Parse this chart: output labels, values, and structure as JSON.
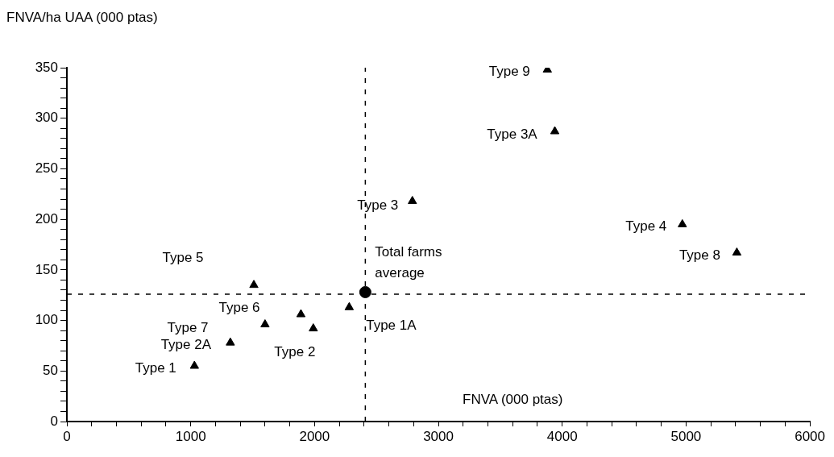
{
  "chart_data": {
    "type": "scatter",
    "xlabel": "FNVA (000 ptas)",
    "ylabel": "FNVA/ha UAA (000 ptas)",
    "xlim": [
      0,
      6000
    ],
    "ylim": [
      0,
      350
    ],
    "xticks": [
      0,
      {
        "value": 200,
        "label": null
      },
      {
        "value": 400,
        "label": null
      },
      {
        "value": 600,
        "label": null
      },
      {
        "value": 800,
        "label": null
      },
      1000,
      {
        "value": 1200,
        "label": null
      },
      {
        "value": 1400,
        "label": null
      },
      {
        "value": 1600,
        "label": null
      },
      {
        "value": 1800,
        "label": null
      },
      2000,
      {
        "value": 2200,
        "label": null
      },
      {
        "value": 2400,
        "label": null
      },
      {
        "value": 2600,
        "label": null
      },
      {
        "value": 2800,
        "label": null
      },
      3000,
      {
        "value": 3200,
        "label": null
      },
      {
        "value": 3400,
        "label": null
      },
      {
        "value": 3600,
        "label": null
      },
      {
        "value": 3800,
        "label": null
      },
      4000,
      {
        "value": 4200,
        "label": null
      },
      {
        "value": 4400,
        "label": null
      },
      {
        "value": 4600,
        "label": null
      },
      {
        "value": 4800,
        "label": null
      },
      5000,
      {
        "value": 5200,
        "label": null
      },
      {
        "value": 5400,
        "label": null
      },
      {
        "value": 5600,
        "label": null
      },
      {
        "value": 5800,
        "label": null
      },
      6000
    ],
    "yticks": [
      0,
      {
        "value": 10,
        "label": null
      },
      {
        "value": 20,
        "label": null
      },
      {
        "value": 30,
        "label": null
      },
      {
        "value": 40,
        "label": null
      },
      50,
      {
        "value": 60,
        "label": null
      },
      {
        "value": 70,
        "label": null
      },
      {
        "value": 80,
        "label": null
      },
      {
        "value": 90,
        "label": null
      },
      100,
      {
        "value": 110,
        "label": null
      },
      {
        "value": 120,
        "label": null
      },
      {
        "value": 130,
        "label": null
      },
      {
        "value": 140,
        "label": null
      },
      150,
      {
        "value": 160,
        "label": null
      },
      {
        "value": 170,
        "label": null
      },
      {
        "value": 180,
        "label": null
      },
      {
        "value": 190,
        "label": null
      },
      200,
      {
        "value": 210,
        "label": null
      },
      {
        "value": 220,
        "label": null
      },
      {
        "value": 230,
        "label": null
      },
      {
        "value": 240,
        "label": null
      },
      250,
      {
        "value": 260,
        "label": null
      },
      {
        "value": 270,
        "label": null
      },
      {
        "value": 280,
        "label": null
      },
      {
        "value": 290,
        "label": null
      },
      300,
      {
        "value": 310,
        "label": null
      },
      {
        "value": 320,
        "label": null
      },
      {
        "value": 330,
        "label": null
      },
      {
        "value": 340,
        "label": null
      },
      350
    ],
    "series": [
      {
        "x": [
          1030,
          1320,
          1510,
          1600,
          1890,
          1990,
          2280,
          2790,
          3880,
          3940,
          4970,
          5410
        ],
        "values": [
          55,
          78,
          135,
          96,
          106,
          92,
          113,
          218,
          348,
          287,
          195,
          167
        ],
        "color": "#000000",
        "marker": "triangle"
      },
      {
        "x": [
          2410
        ],
        "values": [
          128
        ],
        "color": "#000000",
        "marker": "circle"
      }
    ],
    "ref_lines": [
      {
        "axis": "x",
        "value": 2410,
        "line_style": "dashed"
      },
      {
        "axis": "y",
        "value": 126,
        "line_style": "dashed"
      }
    ],
    "annotations": [
      {
        "text": "Type 1",
        "x": 1030,
        "y": 55
      },
      {
        "text": "Type 2A",
        "x": 1320,
        "y": 78
      },
      "Type 5",
      "Type 7",
      "Type 6",
      {
        "text": "Type 2",
        "x": 1990,
        "y": 92
      },
      {
        "text": "Type 1A",
        "x": 2280,
        "y": 113
      },
      {
        "text": "Type 3",
        "x": 2790,
        "y": 218
      },
      {
        "text": "Type 9",
        "x": 3880,
        "y": 348
      },
      {
        "text": "Type 3A",
        "x": 3940,
        "y": 287
      },
      {
        "text": "Type 4",
        "x": 4970,
        "y": 195
      },
      {
        "text": "Type 8",
        "x": 5410,
        "y": 167
      },
      {
        "text": "Total farms average",
        "x": 2410,
        "y": 128
      }
    ]
  }
}
